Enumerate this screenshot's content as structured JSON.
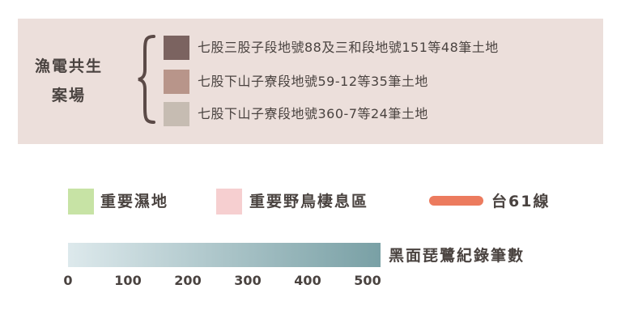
{
  "fishery_solar": {
    "title_line1": "漁電共生",
    "title_line2": "案場",
    "items": [
      {
        "label": "七股三股子段地號88及三和段地號151等48筆土地",
        "color": "#7b6360"
      },
      {
        "label": "七股下山子寮段地號59-12等35筆土地",
        "color": "#b8958a"
      },
      {
        "label": "七股下山子寮段地號360-7等24筆土地",
        "color": "#c6bcb2"
      }
    ]
  },
  "keys": {
    "wetland": {
      "label": "重要濕地",
      "color": "#c7e3a5"
    },
    "bird_area": {
      "label": "重要野鳥棲息區",
      "color": "#f6cfd0"
    },
    "road": {
      "label": "台61線",
      "color": "#ec7b5e"
    }
  },
  "gradient_scale": {
    "title": "黑面琵鷺紀錄筆數",
    "color_start": "#dde9ec",
    "color_end": "#79a0a5",
    "ticks": [
      "0",
      "100",
      "200",
      "300",
      "400",
      "500"
    ]
  }
}
